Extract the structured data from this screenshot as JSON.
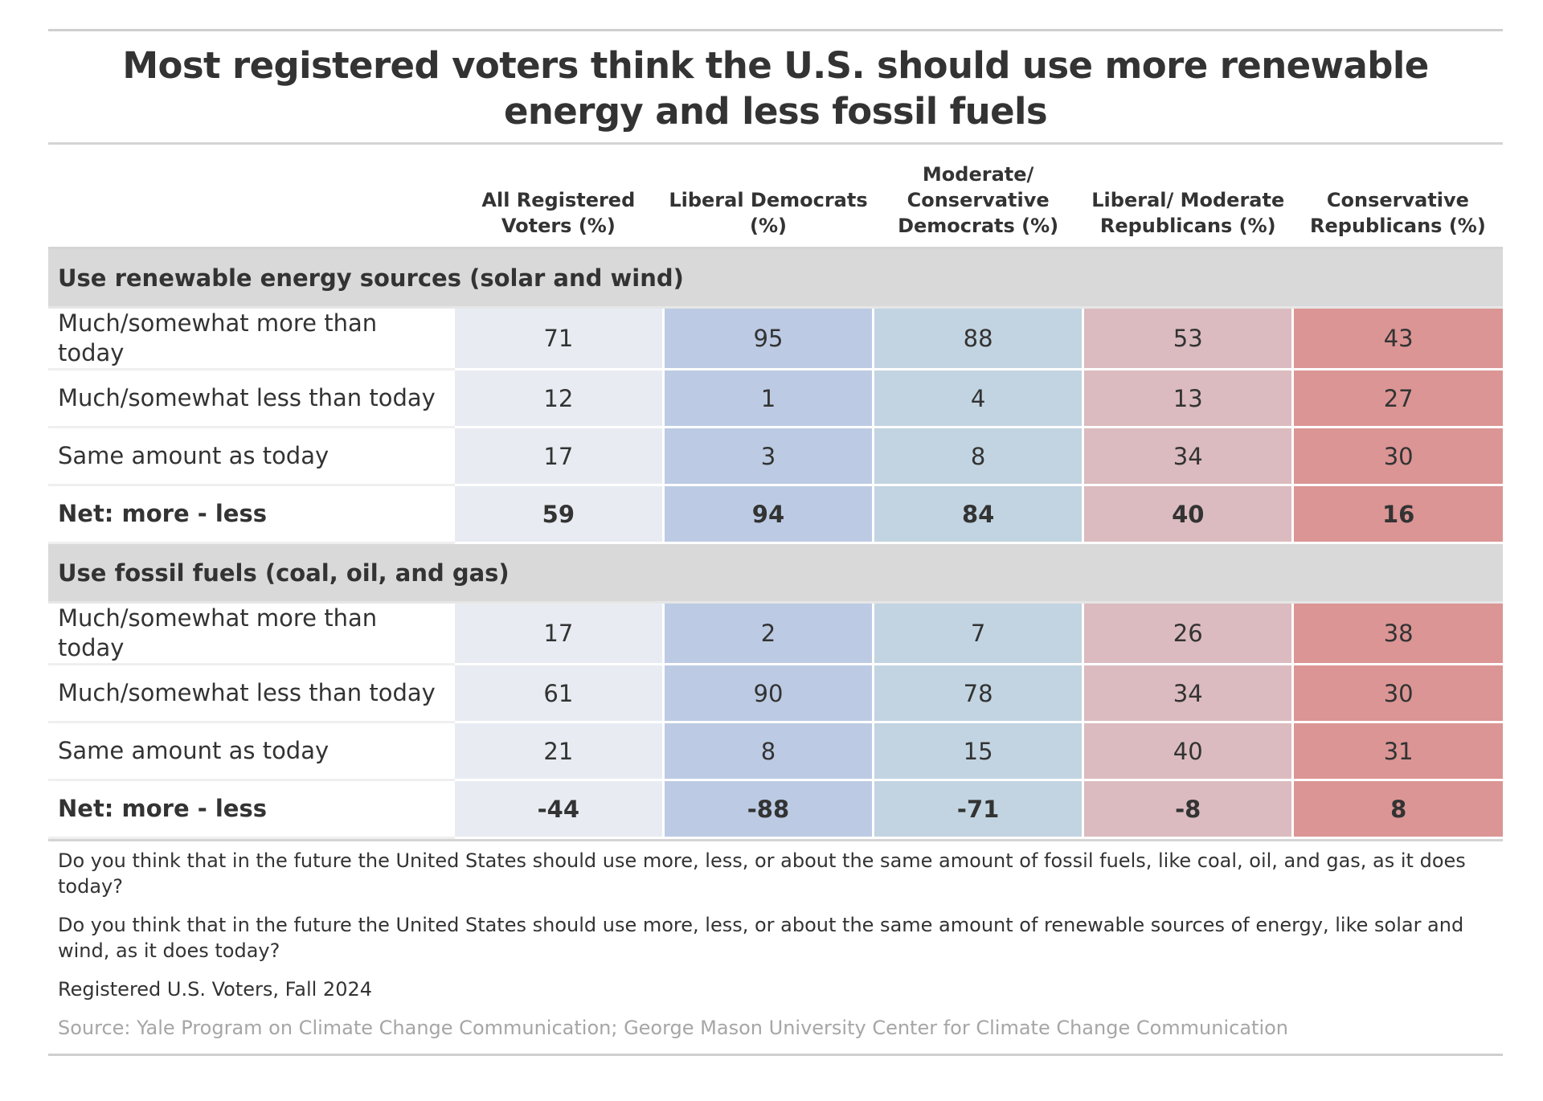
{
  "chart_data": {
    "type": "table",
    "title": "Most registered voters think the U.S. should use more renewable energy and less fossil fuels",
    "columns": [
      "All Registered Voters (%)",
      "Liberal Democrats (%)",
      "Moderate/ Conservative Democrats (%)",
      "Liberal/ Moderate Republicans (%)",
      "Conservative Republicans (%)"
    ],
    "column_colors": [
      "#e8ecf2",
      "#bccbe3",
      "#c2d4e1",
      "#dbbbbf",
      "#db9594"
    ],
    "sections": [
      {
        "name": "Use renewable energy sources (solar and wind)",
        "rows": [
          {
            "label": "Much/somewhat more than today",
            "values": [
              "71",
              "95",
              "88",
              "53",
              "43"
            ]
          },
          {
            "label": "Much/somewhat less than today",
            "values": [
              "12",
              "1",
              "4",
              "13",
              "27"
            ]
          },
          {
            "label": "Same amount as today",
            "values": [
              "17",
              "3",
              "8",
              "34",
              "30"
            ]
          },
          {
            "label": "Net: more - less",
            "values": [
              "59",
              "94",
              "84",
              "40",
              "16"
            ]
          }
        ]
      },
      {
        "name": "Use fossil fuels (coal, oil, and gas)",
        "rows": [
          {
            "label": "Much/somewhat more than today",
            "values": [
              "17",
              "2",
              "7",
              "26",
              "38"
            ]
          },
          {
            "label": "Much/somewhat less than today",
            "values": [
              "61",
              "90",
              "78",
              "34",
              "30"
            ]
          },
          {
            "label": "Same amount as today",
            "values": [
              "21",
              "8",
              "15",
              "40",
              "31"
            ]
          },
          {
            "label": "Net: more - less",
            "values": [
              "-44",
              "-88",
              "-71",
              "-8",
              "8"
            ]
          }
        ]
      }
    ]
  },
  "notes": [
    "Do you think that in the future the United States should use more, less, or about the same amount of fossil fuels, like coal, oil, and gas, as it does today?",
    "Do you think that in the future the United States should use more, less, or about the same amount of renewable sources of energy, like solar and wind, as it does today?",
    "Registered U.S. Voters, Fall 2024"
  ],
  "source": "Source: Yale Program on Climate Change Communication; George Mason University Center for Climate Change Communication"
}
